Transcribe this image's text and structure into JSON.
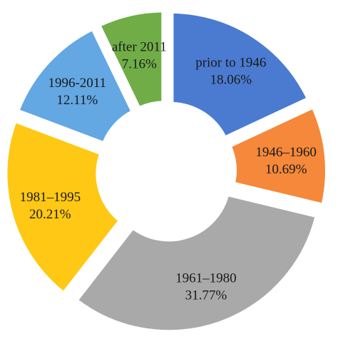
{
  "chart_data": {
    "type": "pie",
    "variant": "exploded-donut",
    "title": "",
    "start_angle_deg": 0,
    "direction": "clockwise",
    "slices": [
      {
        "label": "prior to 1946",
        "value": 18.06,
        "display": "18.06%",
        "color": "#4a7bd1"
      },
      {
        "label": "1946–1960",
        "value": 10.69,
        "display": "10.69%",
        "color": "#f5883a"
      },
      {
        "label": "1961–1980",
        "value": 31.77,
        "display": "31.77%",
        "color": "#a9a9a9"
      },
      {
        "label": "1981–1995",
        "value": 20.21,
        "display": "20.21%",
        "color": "#ffc814"
      },
      {
        "label": "1996-2011",
        "value": 12.11,
        "display": "12.11%",
        "color": "#63a7e3"
      },
      {
        "label": "after 2011",
        "value": 7.16,
        "display": "7.16%",
        "color": "#70ad47"
      }
    ]
  }
}
